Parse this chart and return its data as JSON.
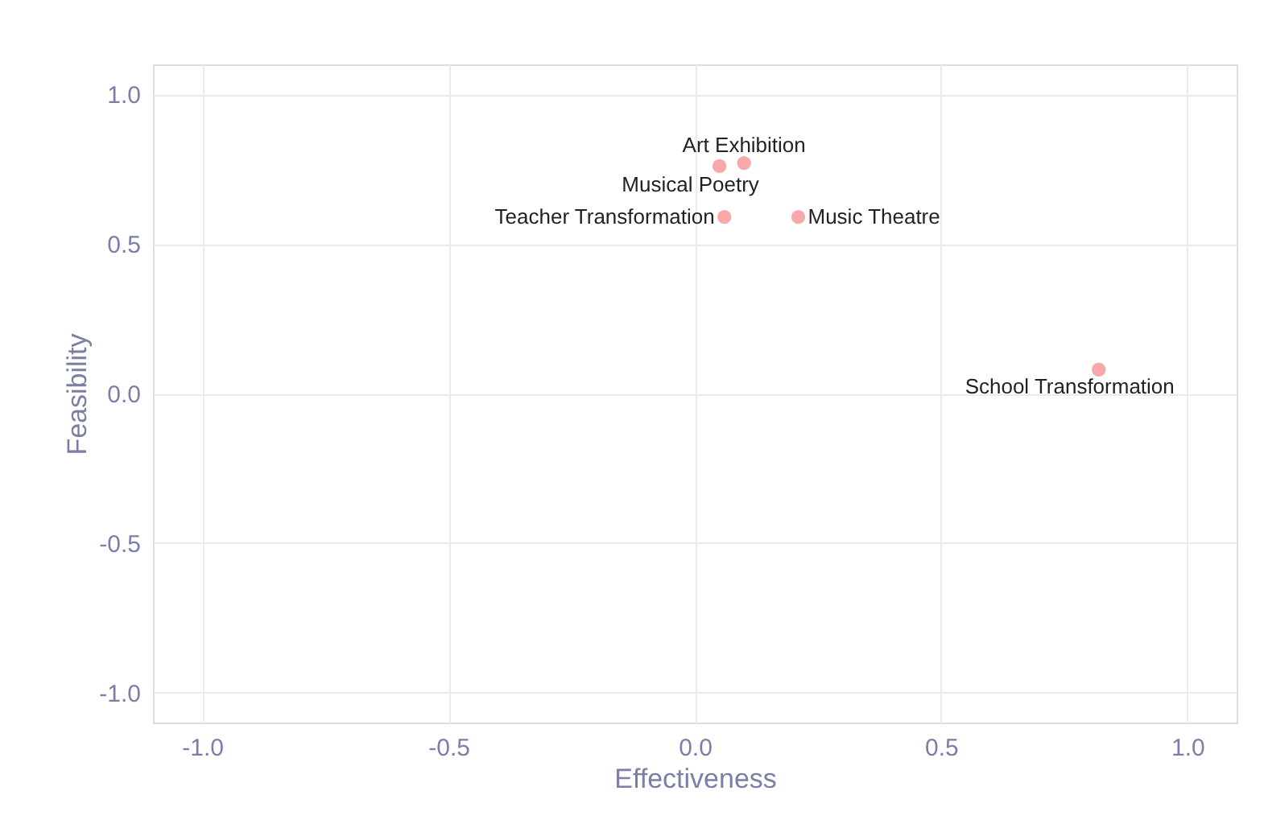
{
  "chart_data": {
    "type": "scatter",
    "xlabel": "Effectiveness",
    "ylabel": "Feasibility",
    "x": [
      0.05,
      0.1,
      0.06,
      0.21,
      0.82
    ],
    "series": [
      {
        "color": "#f8a8a8",
        "values": [
          0.76,
          0.77,
          0.59,
          0.59,
          0.08
        ]
      }
    ],
    "annotations": [
      {
        "text": "Musical Poetry",
        "x": 0.05,
        "y": 0.76
      },
      {
        "text": "Art Exhibition",
        "x": 0.1,
        "y": 0.77
      },
      {
        "text": "Teacher Transformation",
        "x": 0.06,
        "y": 0.59
      },
      {
        "text": "Music Theatre",
        "x": 0.21,
        "y": 0.59
      },
      {
        "text": "School Transformation",
        "x": 0.82,
        "y": 0.08
      }
    ],
    "xlim": [
      -1.1,
      1.1
    ],
    "ylim": [
      -1.1,
      1.1
    ],
    "xticks": [
      {
        "value": -1,
        "label": "-1.0"
      },
      {
        "value": -0.5,
        "label": "-0.5"
      },
      {
        "value": 0,
        "label": "0.0"
      },
      {
        "value": 0.5,
        "label": "0.5"
      },
      {
        "value": 1,
        "label": "1.0"
      }
    ],
    "yticks": [
      {
        "value": -1,
        "label": "-1.0"
      },
      {
        "value": -0.5,
        "label": "-0.5"
      },
      {
        "value": 0,
        "label": "0.0"
      },
      {
        "value": 0.5,
        "label": "0.5"
      },
      {
        "value": 1,
        "label": "1.0"
      }
    ],
    "grid": true,
    "marker": "circle"
  }
}
